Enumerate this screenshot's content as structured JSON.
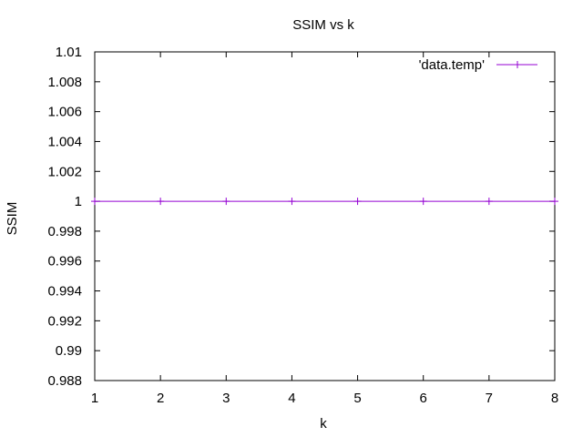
{
  "chart_data": {
    "type": "line",
    "title": "SSIM vs k",
    "xlabel": "k",
    "ylabel": "SSIM",
    "xlim": [
      1,
      8
    ],
    "ylim": [
      0.988,
      1.01
    ],
    "xticks": [
      1,
      2,
      3,
      4,
      5,
      6,
      7,
      8
    ],
    "yticks": [
      0.988,
      0.99,
      0.992,
      0.994,
      0.996,
      0.998,
      1,
      1.002,
      1.004,
      1.006,
      1.008,
      1.01
    ],
    "ytick_labels": [
      "0.988",
      "0.99",
      "0.992",
      "0.994",
      "0.996",
      "0.998",
      "1",
      "1.002",
      "1.004",
      "1.006",
      "1.008",
      "1.01"
    ],
    "grid": false,
    "legend_position": "top-right",
    "series": [
      {
        "name": "'data.temp'",
        "color": "#9400d3",
        "marker": "plus",
        "x": [
          1,
          2,
          3,
          4,
          5,
          6,
          7,
          8
        ],
        "y": [
          1,
          1,
          1,
          1,
          1,
          1,
          1,
          1
        ]
      }
    ]
  }
}
